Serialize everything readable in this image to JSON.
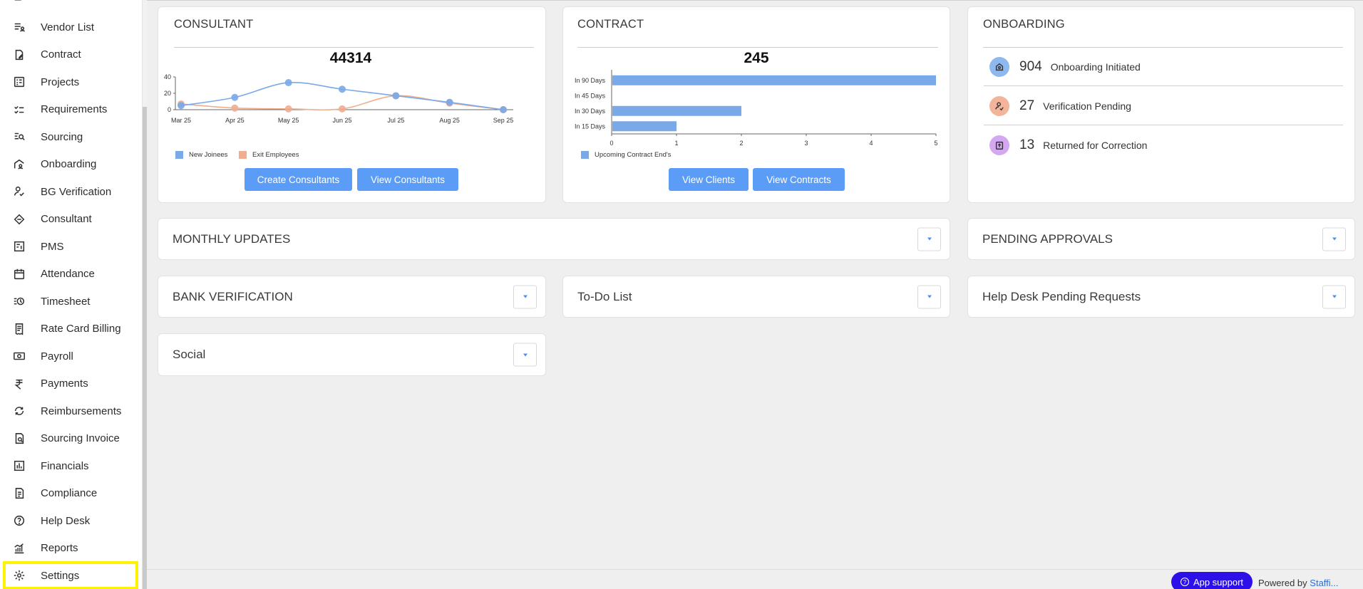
{
  "sidebar": {
    "items": [
      {
        "label": "Vendor List",
        "icon": "vendor-list-icon"
      },
      {
        "label": "Contract",
        "icon": "contract-icon"
      },
      {
        "label": "Projects",
        "icon": "projects-icon"
      },
      {
        "label": "Requirements",
        "icon": "requirements-icon"
      },
      {
        "label": "Sourcing",
        "icon": "sourcing-icon"
      },
      {
        "label": "Onboarding",
        "icon": "onboarding-icon"
      },
      {
        "label": "BG Verification",
        "icon": "bg-verification-icon"
      },
      {
        "label": "Consultant",
        "icon": "consultant-icon"
      },
      {
        "label": "PMS",
        "icon": "pms-icon"
      },
      {
        "label": "Attendance",
        "icon": "calendar-icon"
      },
      {
        "label": "Timesheet",
        "icon": "timesheet-icon"
      },
      {
        "label": "Rate Card Billing",
        "icon": "receipt-icon"
      },
      {
        "label": "Payroll",
        "icon": "payroll-icon"
      },
      {
        "label": "Payments",
        "icon": "rupee-icon"
      },
      {
        "label": "Reimbursements",
        "icon": "reimbursement-icon"
      },
      {
        "label": "Sourcing Invoice",
        "icon": "invoice-search-icon"
      },
      {
        "label": "Financials",
        "icon": "financials-icon"
      },
      {
        "label": "Compliance",
        "icon": "compliance-icon"
      },
      {
        "label": "Help Desk",
        "icon": "help-icon"
      },
      {
        "label": "Reports",
        "icon": "reports-icon"
      },
      {
        "label": "Settings",
        "icon": "gear-icon",
        "active": true
      }
    ]
  },
  "consultant": {
    "title": "CONSULTANT",
    "total": "44314",
    "create_label": "Create Consultants",
    "view_label": "View Consultants"
  },
  "contract": {
    "title": "CONTRACT",
    "total": "245",
    "view_clients_label": "View Clients",
    "view_contracts_label": "View Contracts"
  },
  "onboarding": {
    "title": "ONBOARDING",
    "rows": [
      {
        "count": "904",
        "label": "Onboarding Initiated",
        "color": "#8fb8ef",
        "icon": "onboarding-initiated-icon"
      },
      {
        "count": "27",
        "label": "Verification Pending",
        "color": "#f3b49a",
        "icon": "verification-pending-icon"
      },
      {
        "count": "13",
        "label": "Returned for Correction",
        "color": "#d3a8f0",
        "icon": "returned-icon"
      }
    ]
  },
  "panels": {
    "monthly_updates": "MONTHLY UPDATES",
    "pending_approvals": "PENDING APPROVALS",
    "bank_verification": "BANK VERIFICATION",
    "todo": "To-Do List",
    "helpdesk": "Help Desk Pending Requests",
    "social": "Social"
  },
  "footer": {
    "app_support": "App support",
    "powered_by": "Powered by",
    "brand": "Staffi..."
  },
  "colors": {
    "accent": "#5b9df6",
    "new_joinees": "#7aa9e8",
    "exit_employees": "#f0ad90",
    "highlight": "#fff200",
    "app_support_bg": "#2d10e8"
  },
  "chart_data": [
    {
      "type": "line",
      "categories": [
        "Mar 25",
        "Apr 25",
        "May 25",
        "Jun 25",
        "Jul 25",
        "Aug 25",
        "Sep 25"
      ],
      "series": [
        {
          "name": "New Joinees",
          "values": [
            5,
            15,
            33,
            25,
            17,
            9,
            0
          ]
        },
        {
          "name": "Exit Employees",
          "values": [
            7,
            2,
            1,
            1,
            17,
            8,
            0
          ]
        }
      ],
      "ylim": [
        0,
        40
      ],
      "yticks": [
        "0",
        "20",
        "40"
      ],
      "title": "",
      "xlabel": "",
      "ylabel": ""
    },
    {
      "type": "bar",
      "orientation": "horizontal",
      "categories": [
        "In 90 Days",
        "In 45 Days",
        "In 30 Days",
        "In 15 Days"
      ],
      "series": [
        {
          "name": "Upcoming Contract End's",
          "values": [
            5,
            0,
            2,
            1
          ]
        }
      ],
      "xlim": [
        0,
        5
      ],
      "xticks": [
        "0",
        "1",
        "2",
        "3",
        "4",
        "5"
      ],
      "title": "",
      "xlabel": "",
      "ylabel": ""
    }
  ]
}
